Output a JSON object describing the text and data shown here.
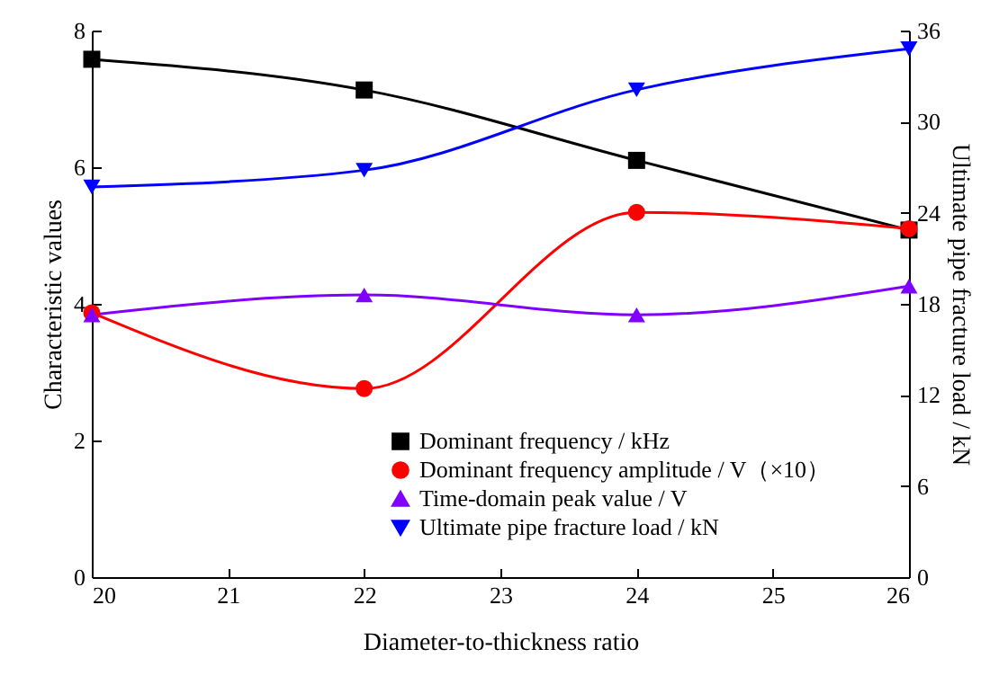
{
  "chart_data": {
    "type": "line",
    "xlabel": "Diameter-to-thickness ratio",
    "ylabel": "Characteristic values",
    "y2label": "Ultimate pipe fracture load / kN",
    "x": [
      20,
      22,
      24,
      26
    ],
    "xlim": [
      20,
      26
    ],
    "xticks": [
      20,
      21,
      22,
      23,
      24,
      25,
      26
    ],
    "ylim": [
      0,
      8
    ],
    "yticks": [
      0,
      2,
      4,
      6,
      8
    ],
    "y2lim": [
      0,
      36
    ],
    "y2ticks": [
      0,
      6,
      12,
      18,
      24,
      30,
      36
    ],
    "legend": "bottom right",
    "grid": false,
    "line_style": "solid",
    "series": [
      {
        "name": "Dominant frequency / kHz",
        "color": "#000000",
        "marker": "square",
        "values": [
          7.58,
          7.13,
          6.1,
          5.08
        ]
      },
      {
        "name": "Dominant frequency amplitude / V（×10）",
        "color": "#ff0000",
        "marker": "circle",
        "values": [
          3.87,
          2.76,
          5.34,
          5.1
        ]
      },
      {
        "name": "Time-domain peak value / V",
        "color": "#8000ff",
        "marker": "triangle",
        "values": [
          3.84,
          4.13,
          3.84,
          4.26
        ]
      },
      {
        "name": "Ultimate pipe fracture load / kN",
        "color": "#0000ff",
        "marker": "triangle-down",
        "axis": "y2",
        "values": [
          25.7,
          26.8,
          32.1,
          34.8
        ]
      }
    ]
  }
}
